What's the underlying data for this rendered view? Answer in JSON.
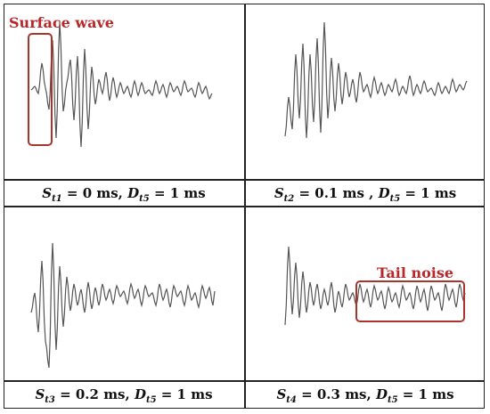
{
  "panels": [
    {
      "sym": "S",
      "sub": "t1",
      "val": " = 0 ms, ",
      "dsym": "D",
      "dsub": "t5",
      "dval": " = 1 ms"
    },
    {
      "sym": "S",
      "sub": "t2",
      "val": " = 0.1 ms , ",
      "dsym": "D",
      "dsub": "t5",
      "dval": " = 1 ms"
    },
    {
      "sym": "S",
      "sub": "t3",
      "val": " = 0.2 ms, ",
      "dsym": "D",
      "dsub": "t5",
      "dval": " = 1 ms"
    },
    {
      "sym": "S",
      "sub": "t4",
      "val": " = 0.3 ms, ",
      "dsym": "D",
      "dsub": "t5",
      "dval": " = 1 ms"
    }
  ],
  "annotations": {
    "surface_wave": "Surface wave",
    "tail_noise": "Tail noise"
  },
  "colors": {
    "annotation": "#b8272a",
    "box": "#a8342c",
    "waveform": "#555555"
  }
}
